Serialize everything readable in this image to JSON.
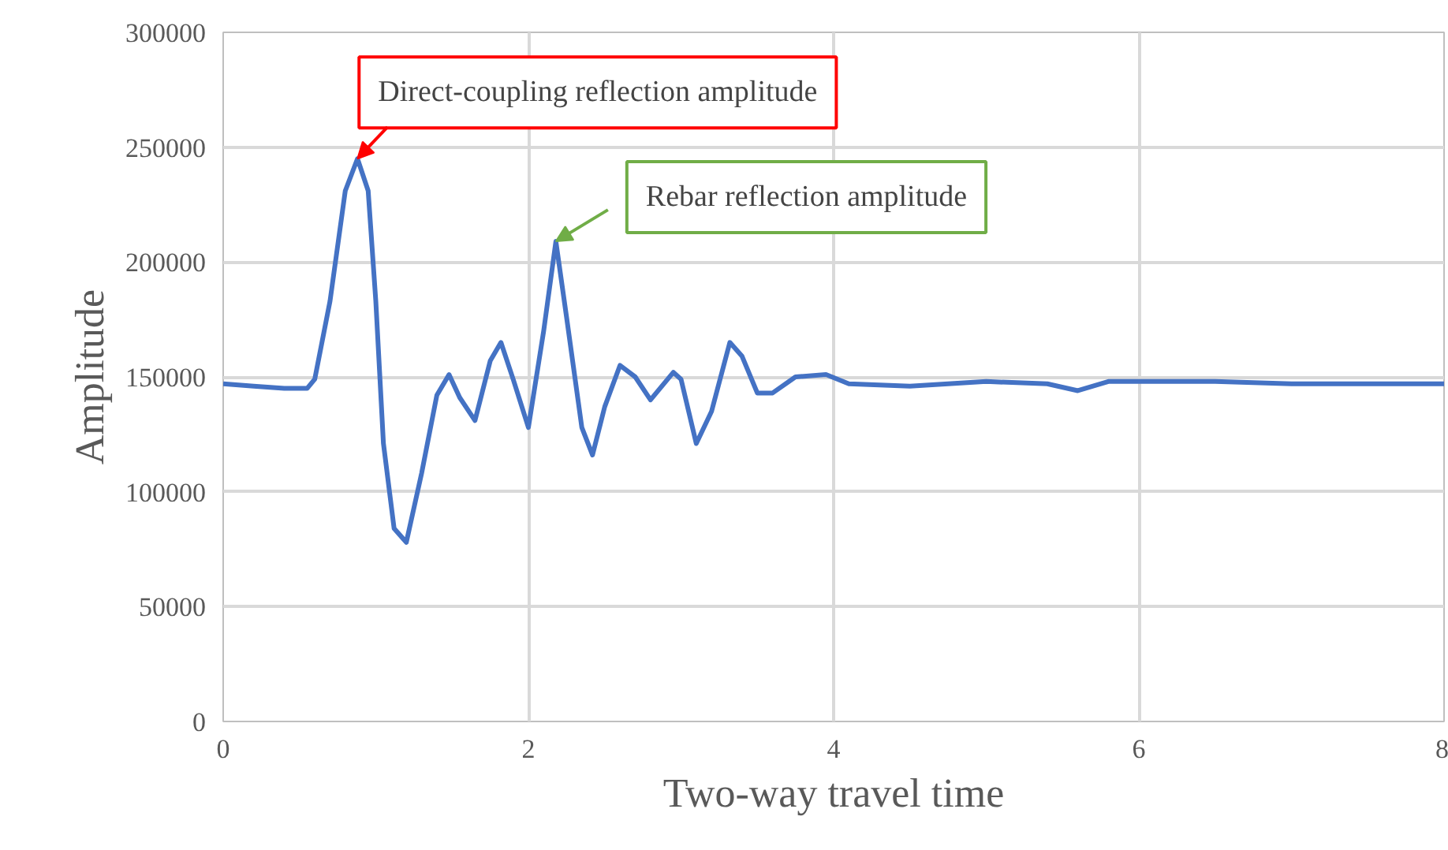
{
  "chart_data": {
    "type": "line",
    "xlabel": "Two-way travel time",
    "ylabel": "Amplitude",
    "x": [
      0,
      0.2,
      0.4,
      0.55,
      0.6,
      0.7,
      0.8,
      0.88,
      0.95,
      1.0,
      1.05,
      1.12,
      1.2,
      1.3,
      1.4,
      1.48,
      1.55,
      1.65,
      1.75,
      1.82,
      1.9,
      2.0,
      2.1,
      2.18,
      2.25,
      2.35,
      2.42,
      2.5,
      2.6,
      2.7,
      2.8,
      2.95,
      3.0,
      3.1,
      3.2,
      3.32,
      3.4,
      3.5,
      3.6,
      3.75,
      3.95,
      4.1,
      4.5,
      5.0,
      5.4,
      5.6,
      5.8,
      6.5,
      7.0,
      7.5,
      8.0
    ],
    "series": [
      {
        "color": "#4472c4",
        "values": [
          147000,
          146000,
          145000,
          145000,
          149000,
          183000,
          231000,
          245000,
          231000,
          183000,
          121000,
          84000,
          78000,
          108000,
          142000,
          151000,
          141000,
          131000,
          157000,
          165000,
          149000,
          128000,
          170000,
          209000,
          176000,
          128000,
          116000,
          137000,
          155000,
          150000,
          140000,
          152000,
          149000,
          121000,
          135000,
          165000,
          159000,
          143000,
          143000,
          150000,
          151000,
          147000,
          146000,
          148000,
          147000,
          144000,
          148000,
          148000,
          147000,
          147000,
          147000
        ]
      }
    ],
    "xlim": [
      0,
      8
    ],
    "xticks": [
      0,
      2,
      4,
      6,
      8
    ],
    "ylim": [
      0,
      300000
    ],
    "yticks": [
      0,
      50000,
      100000,
      150000,
      200000,
      250000,
      300000
    ],
    "grid": true,
    "marker": "none",
    "line_style": "solid",
    "annotations": [
      {
        "text": "Direct-coupling reflection amplitude",
        "x": 0.88,
        "y": 245000
      },
      {
        "text": "Rebar reflection amplitude",
        "x": 2.18,
        "y": 209000
      }
    ]
  }
}
